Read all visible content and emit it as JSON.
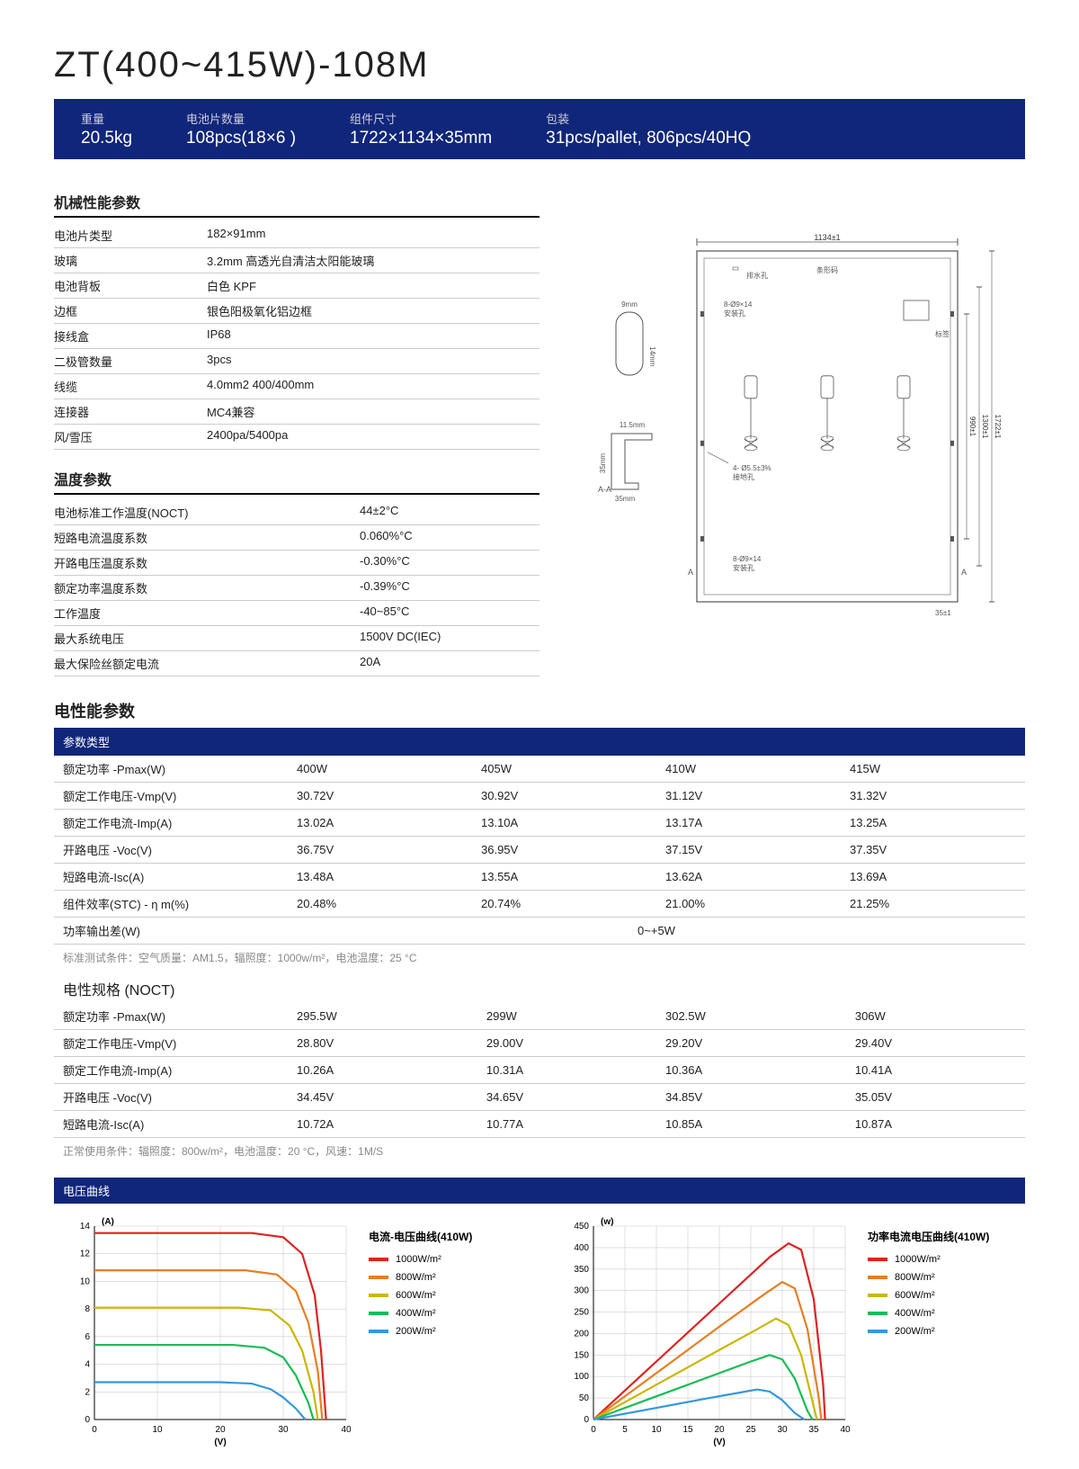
{
  "title": "ZT(400~415W)-108M",
  "summary": [
    {
      "label": "重量",
      "value": "20.5kg"
    },
    {
      "label": "电池片数量",
      "value": "108pcs(18×6 )"
    },
    {
      "label": "组件尺寸",
      "value": "1722×1134×35mm"
    },
    {
      "label": "包装",
      "value": "31pcs/pallet, 806pcs/40HQ"
    }
  ],
  "mech_section_title": "机械性能参数",
  "mech": [
    {
      "k": "电池片类型",
      "v": "182×91mm"
    },
    {
      "k": "玻璃",
      "v": "3.2mm 高透光自清洁太阳能玻璃"
    },
    {
      "k": "电池背板",
      "v": "白色 KPF"
    },
    {
      "k": "边框",
      "v": "银色阳极氧化铝边框"
    },
    {
      "k": "接线盒",
      "v": "IP68"
    },
    {
      "k": "二极管数量",
      "v": "3pcs"
    },
    {
      "k": "线缆",
      "v": "4.0mm2 400/400mm"
    },
    {
      "k": "连接器",
      "v": "MC4兼容"
    },
    {
      "k": "风/雪压",
      "v": "2400pa/5400pa"
    }
  ],
  "temp_section_title": "温度参数",
  "temp": [
    {
      "k": "电池标准工作温度(NOCT)",
      "v": "44±2°C"
    },
    {
      "k": "短路电流温度系数",
      "v": "0.060%°C"
    },
    {
      "k": "开路电压温度系数",
      "v": "-0.30%°C"
    },
    {
      "k": "额定功率温度系数",
      "v": "-0.39%°C"
    },
    {
      "k": "工作温度",
      "v": "-40~85°C"
    },
    {
      "k": "最大系统电压",
      "v": "1500V DC(IEC)"
    },
    {
      "k": "最大保险丝额定电流",
      "v": "20A"
    }
  ],
  "elec_section_title": "电性能参数",
  "param_type_label": "参数类型",
  "elec_rows": [
    {
      "k": "额定功率 -Pmax(W)",
      "v": [
        "400W",
        "405W",
        "410W",
        "415W"
      ]
    },
    {
      "k": "额定工作电压-Vmp(V)",
      "v": [
        "30.72V",
        "30.92V",
        "31.12V",
        "31.32V"
      ]
    },
    {
      "k": "额定工作电流-Imp(A)",
      "v": [
        "13.02A",
        "13.10A",
        "13.17A",
        "13.25A"
      ]
    },
    {
      "k": "开路电压 -Voc(V)",
      "v": [
        "36.75V",
        "36.95V",
        "37.15V",
        "37.35V"
      ]
    },
    {
      "k": "短路电流-Isc(A)",
      "v": [
        "13.48A",
        "13.55A",
        "13.62A",
        "13.69A"
      ]
    },
    {
      "k": "组件效率(STC) - η m(%)",
      "v": [
        "20.48%",
        "20.74%",
        "21.00%",
        "21.25%"
      ]
    }
  ],
  "tolerance_row": {
    "k": "功率输出差(W)",
    "v": "0~+5W"
  },
  "stc_note": "标准测试条件：空气质量：AM1.5，辐照度：1000w/m²，电池温度：25 °C",
  "noct_title": "电性规格 (NOCT)",
  "noct_rows": [
    {
      "k": "额定功率 -Pmax(W)",
      "v": [
        "295.5W",
        "299W",
        "302.5W",
        "306W"
      ]
    },
    {
      "k": "额定工作电压-Vmp(V)",
      "v": [
        "28.80V",
        "29.00V",
        "29.20V",
        "29.40V"
      ]
    },
    {
      "k": "额定工作电流-Imp(A)",
      "v": [
        "10.26A",
        "10.31A",
        "10.36A",
        "10.41A"
      ]
    },
    {
      "k": "开路电压 -Voc(V)",
      "v": [
        "34.45V",
        "34.65V",
        "34.85V",
        "35.05V"
      ]
    },
    {
      "k": "短路电流-Isc(A)",
      "v": [
        "10.72A",
        "10.77A",
        "10.85A",
        "10.87A"
      ]
    }
  ],
  "noct_note": "正常使用条件：辐照度：800w/m²，电池温度：20 °C，风速：1M/S",
  "curve_bar_label": "电压曲线",
  "schematic_labels": {
    "top_width": "1134±1",
    "drain": "排水孔",
    "barcode": "条形码",
    "mount_top": "8-Ø9×14\n安装孔",
    "label": "标签",
    "ground": "4- Ø5.5±3%\n接地孔",
    "mount_bot": "8-Ø9×14\n安装孔",
    "h_right1": "990±1",
    "h_right2": "1300±1",
    "h_right3": "1722±1",
    "bot_thick": "35±1",
    "conn_w": "9mm",
    "conn_h": "14mm",
    "frame_w": "11.5mm",
    "frame_h": "35mm",
    "frame_base": "35mm",
    "section": "A-A"
  },
  "chart1": {
    "type": "line",
    "title": "电流-电压曲线(410W)",
    "x_label": "(V)",
    "y_label": "(A)",
    "xlim": [
      0,
      40
    ],
    "xtick_step": 10,
    "ylim": [
      0,
      14
    ],
    "ytick_step": 2,
    "background_color": "#ffffff",
    "grid_color": "#cccccc",
    "line_width": 2.2,
    "series": [
      {
        "name": "1000W/m²",
        "color": "#d22",
        "data": [
          [
            0,
            13.5
          ],
          [
            25,
            13.5
          ],
          [
            30,
            13.2
          ],
          [
            33,
            12.0
          ],
          [
            35,
            9.0
          ],
          [
            36,
            5.0
          ],
          [
            36.8,
            0
          ]
        ]
      },
      {
        "name": "800W/m²",
        "color": "#e67e22",
        "data": [
          [
            0,
            10.8
          ],
          [
            24,
            10.8
          ],
          [
            29,
            10.5
          ],
          [
            32,
            9.3
          ],
          [
            34,
            7.0
          ],
          [
            35.5,
            3.5
          ],
          [
            36.2,
            0
          ]
        ]
      },
      {
        "name": "600W/m²",
        "color": "#c9b700",
        "data": [
          [
            0,
            8.1
          ],
          [
            23,
            8.1
          ],
          [
            28,
            7.9
          ],
          [
            31,
            6.8
          ],
          [
            33,
            5.0
          ],
          [
            34.8,
            2.0
          ],
          [
            35.5,
            0
          ]
        ]
      },
      {
        "name": "400W/m²",
        "color": "#1abc56",
        "data": [
          [
            0,
            5.4
          ],
          [
            22,
            5.4
          ],
          [
            27,
            5.2
          ],
          [
            30,
            4.5
          ],
          [
            32,
            3.2
          ],
          [
            34,
            1.2
          ],
          [
            34.8,
            0
          ]
        ]
      },
      {
        "name": "200W/m²",
        "color": "#3498db",
        "data": [
          [
            0,
            2.7
          ],
          [
            20,
            2.7
          ],
          [
            25,
            2.6
          ],
          [
            28,
            2.2
          ],
          [
            30,
            1.6
          ],
          [
            32,
            0.8
          ],
          [
            33.5,
            0
          ]
        ]
      }
    ]
  },
  "chart2": {
    "type": "line",
    "title": "功率电流电压曲线(410W)",
    "x_label": "(V)",
    "y_label": "(w)",
    "xlim": [
      0,
      40
    ],
    "xtick_step": 5,
    "ylim": [
      0,
      450
    ],
    "ytick_step": 50,
    "background_color": "#ffffff",
    "grid_color": "#cccccc",
    "line_width": 2.2,
    "series": [
      {
        "name": "1000W/m²",
        "color": "#d22",
        "data": [
          [
            0,
            0
          ],
          [
            10,
            135
          ],
          [
            20,
            270
          ],
          [
            28,
            378
          ],
          [
            31,
            410
          ],
          [
            33,
            395
          ],
          [
            35,
            280
          ],
          [
            36.5,
            80
          ],
          [
            36.8,
            0
          ]
        ]
      },
      {
        "name": "800W/m²",
        "color": "#e67e22",
        "data": [
          [
            0,
            0
          ],
          [
            10,
            108
          ],
          [
            20,
            216
          ],
          [
            27,
            290
          ],
          [
            30,
            320
          ],
          [
            32,
            305
          ],
          [
            34,
            210
          ],
          [
            35.8,
            50
          ],
          [
            36.2,
            0
          ]
        ]
      },
      {
        "name": "600W/m²",
        "color": "#c9b700",
        "data": [
          [
            0,
            0
          ],
          [
            10,
            81
          ],
          [
            20,
            162
          ],
          [
            26,
            210
          ],
          [
            29,
            235
          ],
          [
            31,
            220
          ],
          [
            33,
            150
          ],
          [
            35,
            30
          ],
          [
            35.5,
            0
          ]
        ]
      },
      {
        "name": "400W/m²",
        "color": "#1abc56",
        "data": [
          [
            0,
            0
          ],
          [
            10,
            54
          ],
          [
            20,
            108
          ],
          [
            25,
            135
          ],
          [
            28,
            150
          ],
          [
            30,
            140
          ],
          [
            32,
            95
          ],
          [
            34,
            20
          ],
          [
            34.8,
            0
          ]
        ]
      },
      {
        "name": "200W/m²",
        "color": "#3498db",
        "data": [
          [
            0,
            0
          ],
          [
            10,
            27
          ],
          [
            18,
            49
          ],
          [
            23,
            62
          ],
          [
            26,
            70
          ],
          [
            28,
            65
          ],
          [
            30,
            45
          ],
          [
            32,
            15
          ],
          [
            33.5,
            0
          ]
        ]
      }
    ]
  }
}
